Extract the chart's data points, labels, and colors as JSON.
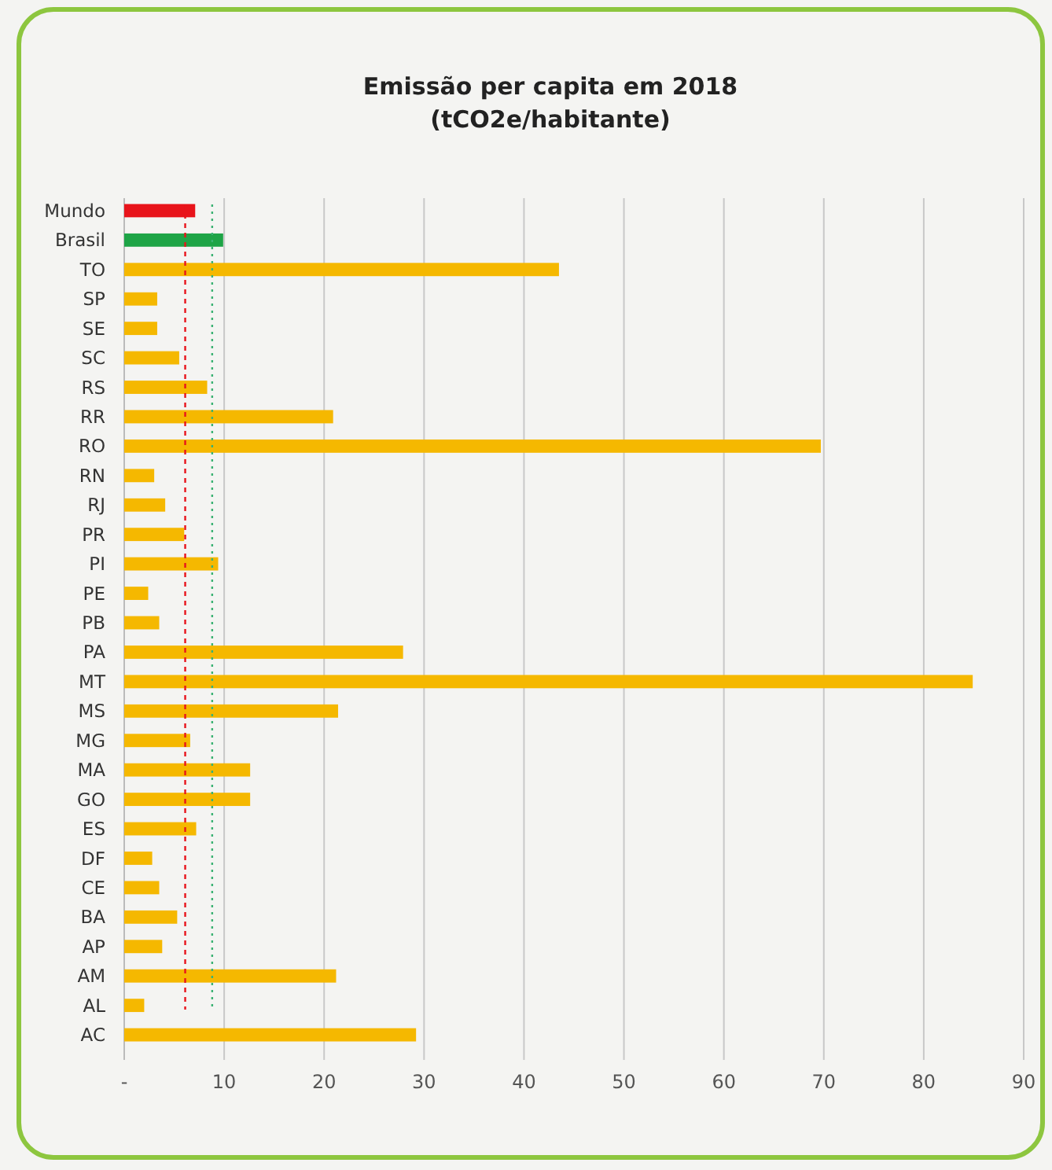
{
  "chart_data": {
    "type": "bar",
    "orientation": "horizontal",
    "title": "Emissão per capita em 2018",
    "subtitle": "(tCO2e/habitante)",
    "categories": [
      "Mundo",
      "Brasil",
      "TO",
      "SP",
      "SE",
      "SC",
      "RS",
      "RR",
      "RO",
      "RN",
      "RJ",
      "PR",
      "PI",
      "PE",
      "PB",
      "PA",
      "MT",
      "MS",
      "MG",
      "MA",
      "GO",
      "ES",
      "DF",
      "CE",
      "BA",
      "AP",
      "AM",
      "AL",
      "AC"
    ],
    "values": [
      7.1,
      9.9,
      43.5,
      3.3,
      3.3,
      5.5,
      8.3,
      20.9,
      69.7,
      3.0,
      4.1,
      6.0,
      9.4,
      2.4,
      3.5,
      27.9,
      84.9,
      21.4,
      6.6,
      12.6,
      12.6,
      7.2,
      2.8,
      3.5,
      5.3,
      3.8,
      21.2,
      2.0,
      29.2
    ],
    "colors": [
      "#e8141b",
      "#1ea446",
      "#f5b800",
      "#f5b800",
      "#f5b800",
      "#f5b800",
      "#f5b800",
      "#f5b800",
      "#f5b800",
      "#f5b800",
      "#f5b800",
      "#f5b800",
      "#f5b800",
      "#f5b800",
      "#f5b800",
      "#f5b800",
      "#f5b800",
      "#f5b800",
      "#f5b800",
      "#f5b800",
      "#f5b800",
      "#f5b800",
      "#f5b800",
      "#f5b800",
      "#f5b800",
      "#f5b800",
      "#f5b800",
      "#f5b800",
      "#f5b800"
    ],
    "xlim": [
      0,
      90
    ],
    "xticks": [
      {
        "value": 0,
        "label": "-"
      },
      10,
      20,
      30,
      40,
      50,
      60,
      70,
      80,
      90
    ],
    "grid": "x",
    "ref_lines": [
      {
        "axis": "x",
        "value": 6.1,
        "color": "#e8141b",
        "line_style": "dashed"
      },
      {
        "axis": "x",
        "value": 8.8,
        "color": "#3bb273",
        "line_style": "dotted"
      }
    ]
  }
}
